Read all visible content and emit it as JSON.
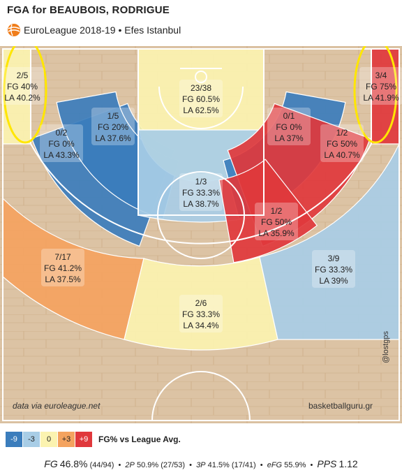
{
  "header": {
    "title": "FGA for BEAUBOIS, RODRIGUE",
    "subtitle": "EuroLeague 2018-19 • Efes Istanbul"
  },
  "colors": {
    "-9": "#3b7dbc",
    "-3": "#a8cde6",
    "0": "#fbf3b0",
    "+3": "#f4a35f",
    "+9": "#e0383c",
    "highlight": "#ffe600",
    "court_wood": "#dcc3a4"
  },
  "chart_data": {
    "type": "heatmap",
    "zones": [
      {
        "id": "left-corner-3",
        "attempts": "2/5",
        "fg": "FG 40%",
        "la": "LA 40.2%",
        "bucket": "0"
      },
      {
        "id": "left-baseline-mid",
        "attempts": "0/2",
        "fg": "FG 0%",
        "la": "LA 43.3%",
        "bucket": "-9"
      },
      {
        "id": "left-mid",
        "attempts": "1/5",
        "fg": "FG 20%",
        "la": "LA 37.6%",
        "bucket": "-9"
      },
      {
        "id": "restricted-area",
        "attempts": "23/38",
        "fg": "FG 60.5%",
        "la": "LA 62.5%",
        "bucket": "0"
      },
      {
        "id": "paint",
        "attempts": "1/3",
        "fg": "FG 33.3%",
        "la": "LA 38.7%",
        "bucket": "-3"
      },
      {
        "id": "right-mid",
        "attempts": "0/1",
        "fg": "FG 0%",
        "la": "LA 37%",
        "bucket": "-9"
      },
      {
        "id": "right-baseline-mid",
        "attempts": "1/2",
        "fg": "FG 50%",
        "la": "LA 40.7%",
        "bucket": "+9"
      },
      {
        "id": "right-elbow-mid",
        "attempts": "1/2",
        "fg": "FG 50%",
        "la": "LA 35.9%",
        "bucket": "+9"
      },
      {
        "id": "right-corner-3",
        "attempts": "3/4",
        "fg": "FG 75%",
        "la": "LA 41.9%",
        "bucket": "+9"
      },
      {
        "id": "left-wing-3",
        "attempts": "7/17",
        "fg": "FG 41.2%",
        "la": "LA 37.5%",
        "bucket": "+3"
      },
      {
        "id": "top-3",
        "attempts": "2/6",
        "fg": "FG 33.3%",
        "la": "LA 34.4%",
        "bucket": "0"
      },
      {
        "id": "right-wing-3",
        "attempts": "3/9",
        "fg": "FG 33.3%",
        "la": "LA 39%",
        "bucket": "-3"
      }
    ],
    "highlighted_zones": [
      "left-corner-3",
      "right-corner-3"
    ],
    "legend": {
      "buckets": [
        "-9",
        "-3",
        "0",
        "+3",
        "+9"
      ],
      "label": "FG% vs League Avg."
    }
  },
  "credits": {
    "source": "data via euroleague.net",
    "site": "basketballguru.gr",
    "handle": "@lostgps"
  },
  "footer": {
    "fg_label": "FG",
    "fg_value": "46.8%",
    "fg_detail": "(44/94)",
    "two_label": "2P",
    "two_value": "50.9%",
    "two_detail": "(27/53)",
    "three_label": "3P",
    "three_value": "41.5%",
    "three_detail": "(17/41)",
    "efg_label": "eFG",
    "efg_value": "55.9%",
    "pps_label": "PPS",
    "pps_value": "1.12",
    "bullet": "•"
  }
}
